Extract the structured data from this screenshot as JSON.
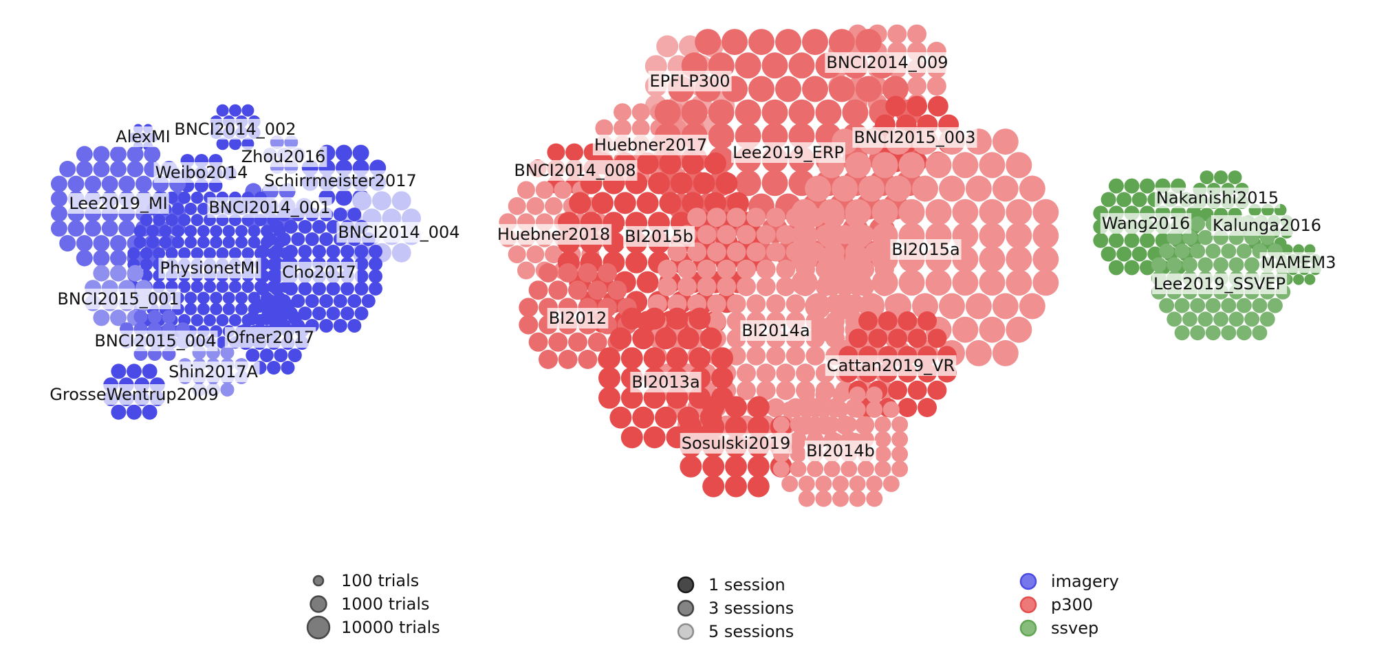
{
  "chart_data": {
    "type": "scatter",
    "title": "",
    "colors": {
      "imagery": "#4a4ae6",
      "p300": "#e74c4c",
      "ssvep": "#5fa552"
    },
    "datasets": [
      {
        "name": "AlexMI",
        "paradigm": "imagery",
        "sessions": 1,
        "trials": 80
      },
      {
        "name": "BNCI2014_002",
        "paradigm": "imagery",
        "sessions": 1,
        "trials": 160
      },
      {
        "name": "Zhou2016",
        "paradigm": "imagery",
        "sessions": 3,
        "trials": 150
      },
      {
        "name": "Weibo2014",
        "paradigm": "imagery",
        "sessions": 1,
        "trials": 160
      },
      {
        "name": "Schirrmeister2017",
        "paradigm": "imagery",
        "sessions": 1,
        "trials": 1000
      },
      {
        "name": "Lee2019_MI",
        "paradigm": "imagery",
        "sessions": 2,
        "trials": 200
      },
      {
        "name": "BNCI2014_001",
        "paradigm": "imagery",
        "sessions": 2,
        "trials": 288
      },
      {
        "name": "BNCI2014_004",
        "paradigm": "imagery",
        "sessions": 5,
        "trials": 720
      },
      {
        "name": "PhysionetMI",
        "paradigm": "imagery",
        "sessions": 1,
        "trials": 90
      },
      {
        "name": "Cho2017",
        "paradigm": "imagery",
        "sessions": 1,
        "trials": 200
      },
      {
        "name": "BNCI2015_001",
        "paradigm": "imagery",
        "sessions": 3,
        "trials": 200
      },
      {
        "name": "BNCI2015_004",
        "paradigm": "imagery",
        "sessions": 2,
        "trials": 180
      },
      {
        "name": "Ofner2017",
        "paradigm": "imagery",
        "sessions": 1,
        "trials": 360
      },
      {
        "name": "Shin2017A",
        "paradigm": "imagery",
        "sessions": 3,
        "trials": 60
      },
      {
        "name": "GrosseWentrup2009",
        "paradigm": "imagery",
        "sessions": 1,
        "trials": 300
      },
      {
        "name": "EPFLP300",
        "paradigm": "p300",
        "sessions": 4,
        "trials": 3300
      },
      {
        "name": "BNCI2014_009",
        "paradigm": "p300",
        "sessions": 3,
        "trials": 1728
      },
      {
        "name": "Huebner2017",
        "paradigm": "p300",
        "sessions": 3,
        "trials": 1200
      },
      {
        "name": "Lee2019_ERP",
        "paradigm": "p300",
        "sessions": 2,
        "trials": 4140
      },
      {
        "name": "BNCI2015_003",
        "paradigm": "p300",
        "sessions": 1,
        "trials": 2700
      },
      {
        "name": "BNCI2014_008",
        "paradigm": "p300",
        "sessions": 1,
        "trials": 4200
      },
      {
        "name": "Huebner2018",
        "paradigm": "p300",
        "sessions": 3,
        "trials": 1200
      },
      {
        "name": "BI2015b",
        "paradigm": "p300",
        "sessions": 1,
        "trials": 2160
      },
      {
        "name": "BI2015a",
        "paradigm": "p300",
        "sessions": 3,
        "trials": 1200
      },
      {
        "name": "BI2012",
        "paradigm": "p300",
        "sessions": 2,
        "trials": 720
      },
      {
        "name": "BI2014a",
        "paradigm": "p300",
        "sessions": 3,
        "trials": 600
      },
      {
        "name": "BI2013a",
        "paradigm": "p300",
        "sessions": 1,
        "trials": 1200
      },
      {
        "name": "Cattan2019_VR",
        "paradigm": "p300",
        "sessions": 1,
        "trials": 1440
      },
      {
        "name": "Sosulski2019",
        "paradigm": "p300",
        "sessions": 1,
        "trials": 7200
      },
      {
        "name": "BI2014b",
        "paradigm": "p300",
        "sessions": 3,
        "trials": 200
      },
      {
        "name": "Nakanishi2015",
        "paradigm": "ssvep",
        "sessions": 1,
        "trials": 180
      },
      {
        "name": "Wang2016",
        "paradigm": "ssvep",
        "sessions": 1,
        "trials": 240
      },
      {
        "name": "Kalunga2016",
        "paradigm": "ssvep",
        "sessions": 1,
        "trials": 64
      },
      {
        "name": "MAMEM3",
        "paradigm": "ssvep",
        "sessions": 1,
        "trials": 100
      },
      {
        "name": "Lee2019_SSVEP",
        "paradigm": "ssvep",
        "sessions": 2,
        "trials": 100
      }
    ],
    "legend_trials": [
      {
        "label": "100 trials",
        "trials": 100
      },
      {
        "label": "1000 trials",
        "trials": 1000
      },
      {
        "label": "10000 trials",
        "trials": 10000
      }
    ],
    "legend_sessions": [
      {
        "label": "1 session",
        "sessions": 1
      },
      {
        "label": "3 sessions",
        "sessions": 3
      },
      {
        "label": "5 sessions",
        "sessions": 5
      }
    ],
    "legend_paradigms": [
      {
        "label": "imagery",
        "paradigm": "imagery"
      },
      {
        "label": "p300",
        "paradigm": "p300"
      },
      {
        "label": "ssvep",
        "paradigm": "ssvep"
      }
    ]
  }
}
